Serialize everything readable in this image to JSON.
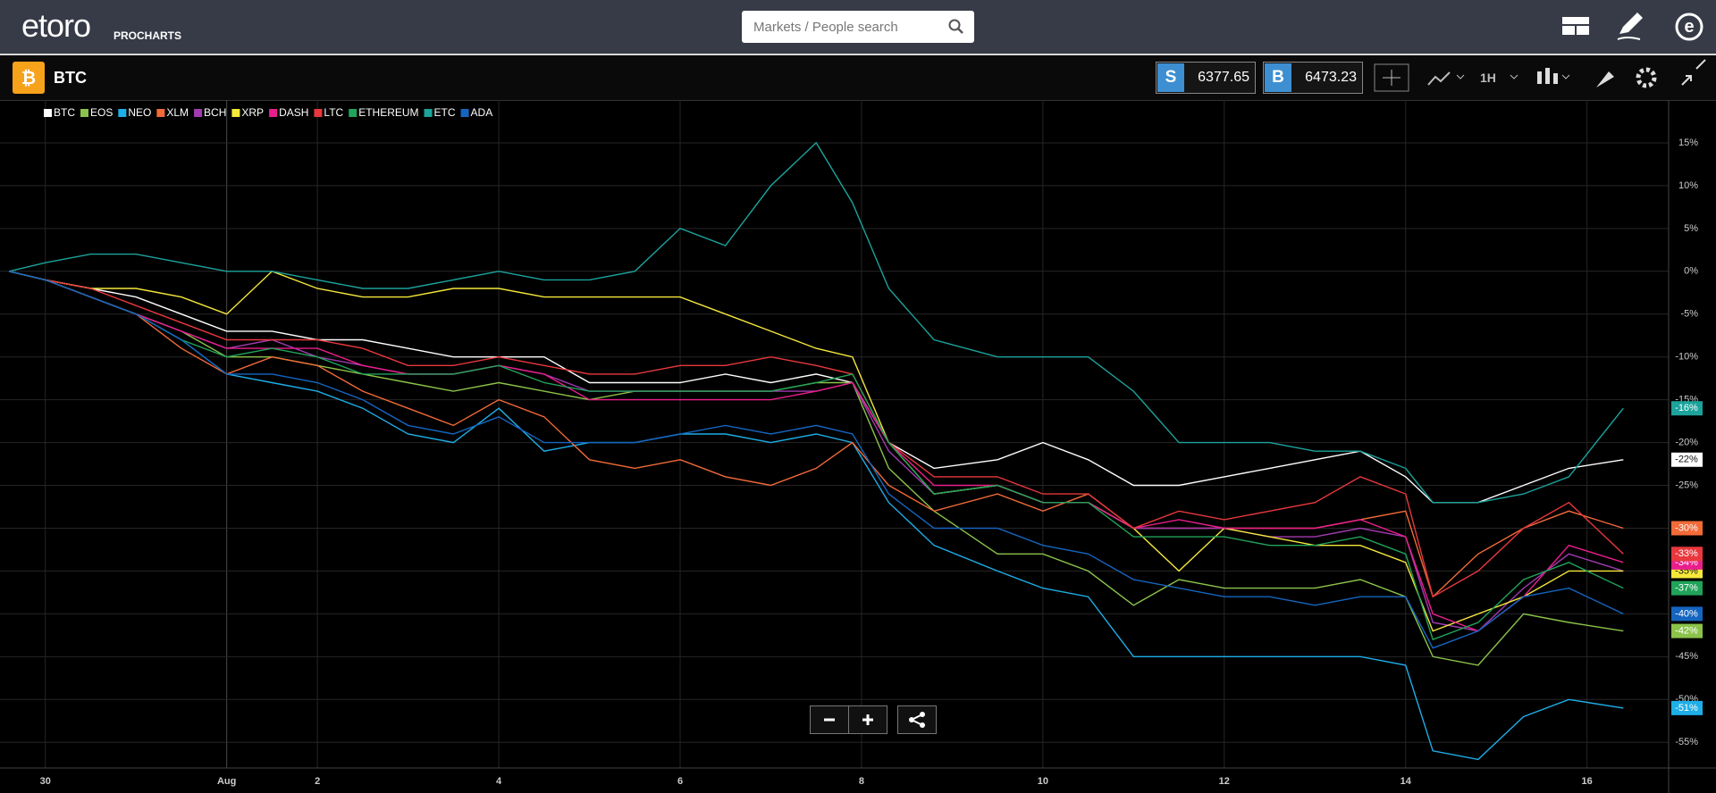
{
  "header": {
    "logo": "etoro",
    "product": "PROCHARTS",
    "search_placeholder": "Markets / People search"
  },
  "instrument": {
    "symbol": "BTC",
    "sell": {
      "label": "S",
      "price": 6377.65
    },
    "buy": {
      "label": "B",
      "price": 6473.23
    },
    "timeframe": "1H"
  },
  "chart_data": {
    "type": "line",
    "x": [
      -1.4,
      -1,
      -0.5,
      0,
      0.5,
      1,
      1.5,
      2,
      2.5,
      3,
      3.5,
      4,
      4.5,
      5,
      5.5,
      6,
      6.5,
      7,
      7.5,
      7.9,
      8.3,
      8.8,
      9.5,
      10,
      10.5,
      11,
      11.5,
      12,
      12.5,
      13,
      13.5,
      14,
      14.3,
      14.8,
      15.3,
      15.8,
      16.4
    ],
    "xlim": [
      -1.5,
      16.9
    ],
    "xticks": [
      {
        "value": -1,
        "label": "30"
      },
      {
        "value": 1,
        "label": "Aug"
      },
      2,
      4,
      6,
      8,
      10,
      12,
      14,
      16
    ],
    "ylim": [
      -58,
      20
    ],
    "yticks": [
      {
        "value": 15,
        "label": "15%"
      },
      {
        "value": 10,
        "label": "10%"
      },
      {
        "value": 5,
        "label": "5%"
      },
      {
        "value": 0,
        "label": "0%"
      },
      {
        "value": -5,
        "label": "-5%"
      },
      {
        "value": -10,
        "label": "-10%"
      },
      {
        "value": -15,
        "label": "-15%"
      },
      {
        "value": -20,
        "label": "-20%"
      },
      {
        "value": -25,
        "label": "-25%"
      },
      {
        "value": -30,
        "label": "-30%"
      },
      {
        "value": -35,
        "label": "-35%"
      },
      {
        "value": -40,
        "label": "-40%"
      },
      {
        "value": -45,
        "label": "-45%"
      },
      {
        "value": -50,
        "label": "-50%"
      },
      {
        "value": -55,
        "label": "-55%"
      }
    ],
    "grid": true,
    "series": [
      {
        "name": "BTC",
        "color": "#ffffff",
        "end_label": "-22%",
        "values": [
          0,
          -1,
          -2,
          -3,
          -5,
          -7,
          -7,
          -8,
          -8,
          -9,
          -10,
          -10,
          -10,
          -13,
          -13,
          -13,
          -12,
          -13,
          -12,
          -13,
          -20,
          -23,
          -22,
          -20,
          -22,
          -25,
          -25,
          -24,
          -23,
          -22,
          -21,
          -24,
          -27,
          -27,
          -25,
          -23,
          -22
        ]
      },
      {
        "name": "EOS",
        "color": "#8bc34a",
        "end_label": "-42%",
        "values": [
          0,
          -1,
          -3,
          -5,
          -7,
          -10,
          -10,
          -11,
          -12,
          -13,
          -14,
          -13,
          -14,
          -15,
          -14,
          -14,
          -14,
          -14,
          -13,
          -13,
          -23,
          -28,
          -33,
          -33,
          -35,
          -39,
          -36,
          -37,
          -37,
          -37,
          -36,
          -38,
          -45,
          -46,
          -40,
          -41,
          -42
        ]
      },
      {
        "name": "NEO",
        "color": "#1eaee8",
        "end_label": "-51%",
        "values": [
          0,
          -1,
          -3,
          -5,
          -8,
          -12,
          -13,
          -14,
          -16,
          -19,
          -20,
          -16,
          -21,
          -20,
          -20,
          -19,
          -19,
          -20,
          -19,
          -20,
          -27,
          -32,
          -35,
          -37,
          -38,
          -45,
          -45,
          -45,
          -45,
          -45,
          -45,
          -46,
          -56,
          -57,
          -52,
          -50,
          -51
        ]
      },
      {
        "name": "XLM",
        "color": "#f26b38",
        "end_label": "-30%",
        "values": [
          0,
          -1,
          -3,
          -5,
          -9,
          -12,
          -10,
          -11,
          -14,
          -16,
          -18,
          -15,
          -17,
          -22,
          -23,
          -22,
          -24,
          -25,
          -23,
          -20,
          -25,
          -28,
          -26,
          -28,
          -26,
          -30,
          -30,
          -30,
          -30,
          -30,
          -29,
          -28,
          -38,
          -33,
          -30,
          -28,
          -30
        ]
      },
      {
        "name": "BCH",
        "color": "#a23bb0",
        "values": [
          0,
          -1,
          -3,
          -5,
          -7,
          -9,
          -8,
          -10,
          -11,
          -12,
          -12,
          -11,
          -12,
          -14,
          -14,
          -14,
          -14,
          -14,
          -14,
          -13,
          -21,
          -26,
          -25,
          -27,
          -27,
          -30,
          -30,
          -30,
          -31,
          -31,
          -30,
          -31,
          -41,
          -42,
          -37,
          -33,
          -35
        ]
      },
      {
        "name": "XRP",
        "color": "#f5e83b",
        "end_label": "-35%",
        "values": [
          0,
          -1,
          -2,
          -2,
          -3,
          -5,
          0,
          -2,
          -3,
          -3,
          -2,
          -2,
          -3,
          -3,
          -3,
          -3,
          -5,
          -7,
          -9,
          -10,
          -20,
          -26,
          -25,
          -27,
          -27,
          -30,
          -35,
          -30,
          -31,
          -32,
          -32,
          -34,
          -42,
          -40,
          -38,
          -35,
          -35
        ]
      },
      {
        "name": "DASH",
        "color": "#e91e8c",
        "end_label": "-34%",
        "values": [
          0,
          -1,
          -3,
          -5,
          -7,
          -9,
          -9,
          -9,
          -11,
          -12,
          -12,
          -11,
          -12,
          -15,
          -15,
          -15,
          -15,
          -15,
          -14,
          -13,
          -20,
          -25,
          -25,
          -27,
          -27,
          -30,
          -29,
          -30,
          -30,
          -30,
          -29,
          -31,
          -40,
          -42,
          -38,
          -32,
          -34
        ]
      },
      {
        "name": "LTC",
        "color": "#e8383d",
        "end_label": "-33%",
        "values": [
          0,
          -1,
          -2,
          -4,
          -6,
          -8,
          -8,
          -8,
          -9,
          -11,
          -11,
          -10,
          -11,
          -12,
          -12,
          -11,
          -11,
          -10,
          -11,
          -12,
          -20,
          -24,
          -24,
          -26,
          -26,
          -30,
          -28,
          -29,
          -28,
          -27,
          -24,
          -26,
          -38,
          -35,
          -30,
          -27,
          -33
        ]
      },
      {
        "name": "ETHEREUM",
        "color": "#21a35a",
        "end_label": "-37%",
        "values": [
          0,
          -1,
          -3,
          -5,
          -8,
          -10,
          -9,
          -10,
          -12,
          -12,
          -12,
          -11,
          -13,
          -14,
          -14,
          -14,
          -14,
          -14,
          -13,
          -12,
          -20,
          -26,
          -25,
          -27,
          -27,
          -31,
          -31,
          -31,
          -32,
          -32,
          -31,
          -33,
          -43,
          -41,
          -36,
          -34,
          -37
        ]
      },
      {
        "name": "ETC",
        "color": "#1ba39c",
        "end_label": "-16%",
        "values": [
          0,
          1,
          2,
          2,
          1,
          0,
          0,
          -1,
          -2,
          -2,
          -1,
          0,
          -1,
          -1,
          0,
          5,
          3,
          10,
          15,
          8,
          -2,
          -8,
          -10,
          -10,
          -10,
          -14,
          -20,
          -20,
          -20,
          -21,
          -21,
          -23,
          -27,
          -27,
          -26,
          -24,
          -16
        ]
      },
      {
        "name": "ADA",
        "color": "#1565c0",
        "end_label": "-40%",
        "values": [
          0,
          -1,
          -3,
          -5,
          -8,
          -12,
          -12,
          -13,
          -15,
          -18,
          -19,
          -17,
          -20,
          -20,
          -20,
          -19,
          -18,
          -19,
          -18,
          -19,
          -26,
          -30,
          -30,
          -32,
          -33,
          -36,
          -37,
          -38,
          -38,
          -39,
          -38,
          -38,
          -44,
          -42,
          -38,
          -37,
          -40
        ]
      }
    ]
  }
}
